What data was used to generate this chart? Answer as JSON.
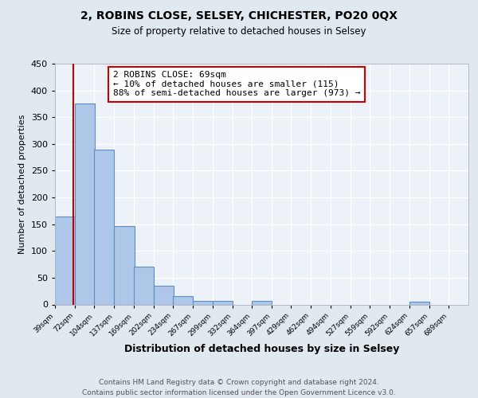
{
  "title": "2, ROBINS CLOSE, SELSEY, CHICHESTER, PO20 0QX",
  "subtitle": "Size of property relative to detached houses in Selsey",
  "xlabel": "Distribution of detached houses by size in Selsey",
  "ylabel": "Number of detached properties",
  "bar_edges": [
    39,
    72,
    104,
    137,
    169,
    202,
    234,
    267,
    299,
    332,
    364,
    397,
    429,
    462,
    494,
    527,
    559,
    592,
    624,
    657,
    689
  ],
  "bar_heights": [
    165,
    375,
    290,
    147,
    70,
    35,
    15,
    7,
    6,
    0,
    6,
    0,
    0,
    0,
    0,
    0,
    0,
    0,
    5,
    0,
    0
  ],
  "bar_color": "#aec6e8",
  "bar_edge_color": "#5a8fc0",
  "bar_linewidth": 0.8,
  "bg_color": "#e0e8f0",
  "plot_bg_color": "#edf2f8",
  "grid_color": "#ffffff",
  "vline_x": 69,
  "vline_color": "#cc0000",
  "annotation_box_text": "2 ROBINS CLOSE: 69sqm\n← 10% of detached houses are smaller (115)\n88% of semi-detached houses are larger (973) →",
  "annotation_box_color": "#cc0000",
  "ylim": [
    0,
    450
  ],
  "yticks": [
    0,
    50,
    100,
    150,
    200,
    250,
    300,
    350,
    400,
    450
  ],
  "tick_labels": [
    "39sqm",
    "72sqm",
    "104sqm",
    "137sqm",
    "169sqm",
    "202sqm",
    "234sqm",
    "267sqm",
    "299sqm",
    "332sqm",
    "364sqm",
    "397sqm",
    "429sqm",
    "462sqm",
    "494sqm",
    "527sqm",
    "559sqm",
    "592sqm",
    "624sqm",
    "657sqm",
    "689sqm"
  ],
  "footnote1": "Contains HM Land Registry data © Crown copyright and database right 2024.",
  "footnote2": "Contains public sector information licensed under the Open Government Licence v3.0."
}
